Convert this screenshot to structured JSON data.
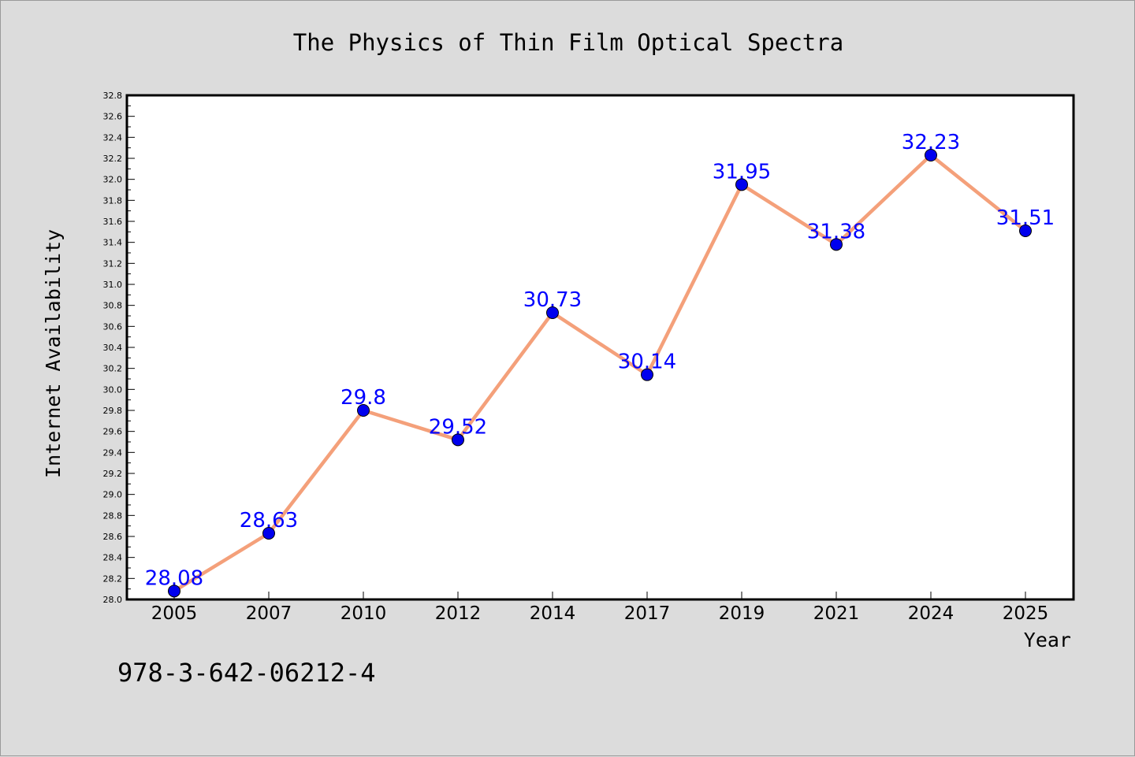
{
  "chart_data": {
    "type": "line",
    "title": "The Physics of Thin Film Optical Spectra",
    "xlabel": "Year",
    "ylabel": "Internet Availability",
    "categories": [
      "2005",
      "2007",
      "2010",
      "2012",
      "2014",
      "2017",
      "2019",
      "2021",
      "2024",
      "2025"
    ],
    "series": [
      {
        "values": [
          28.08,
          28.63,
          29.8,
          29.52,
          30.73,
          30.14,
          31.95,
          31.38,
          32.23,
          31.51
        ],
        "labels": [
          "28.08",
          "28.63",
          "29.8",
          "29.52",
          "30.73",
          "30.14",
          "31.95",
          "31.38",
          "32.23",
          "31.51"
        ]
      }
    ],
    "ylim": [
      28.0,
      32.8
    ],
    "yticks": [
      "28.0",
      "28.2",
      "28.4",
      "28.6",
      "28.8",
      "29.0",
      "29.2",
      "29.4",
      "29.6",
      "29.8",
      "30.0",
      "30.2",
      "30.4",
      "30.6",
      "30.8",
      "31.0",
      "31.2",
      "31.4",
      "31.6",
      "31.8",
      "32.0",
      "32.2",
      "32.4",
      "32.6",
      "32.8"
    ],
    "grid": false,
    "legend": "none",
    "colors": {
      "line": "#f4a07a",
      "marker": "#0000ee",
      "label": "#0000ff",
      "background": "#dcdcdc",
      "plot_area": "#ffffff"
    }
  },
  "footer": {
    "isbn": "978-3-642-06212-4"
  }
}
